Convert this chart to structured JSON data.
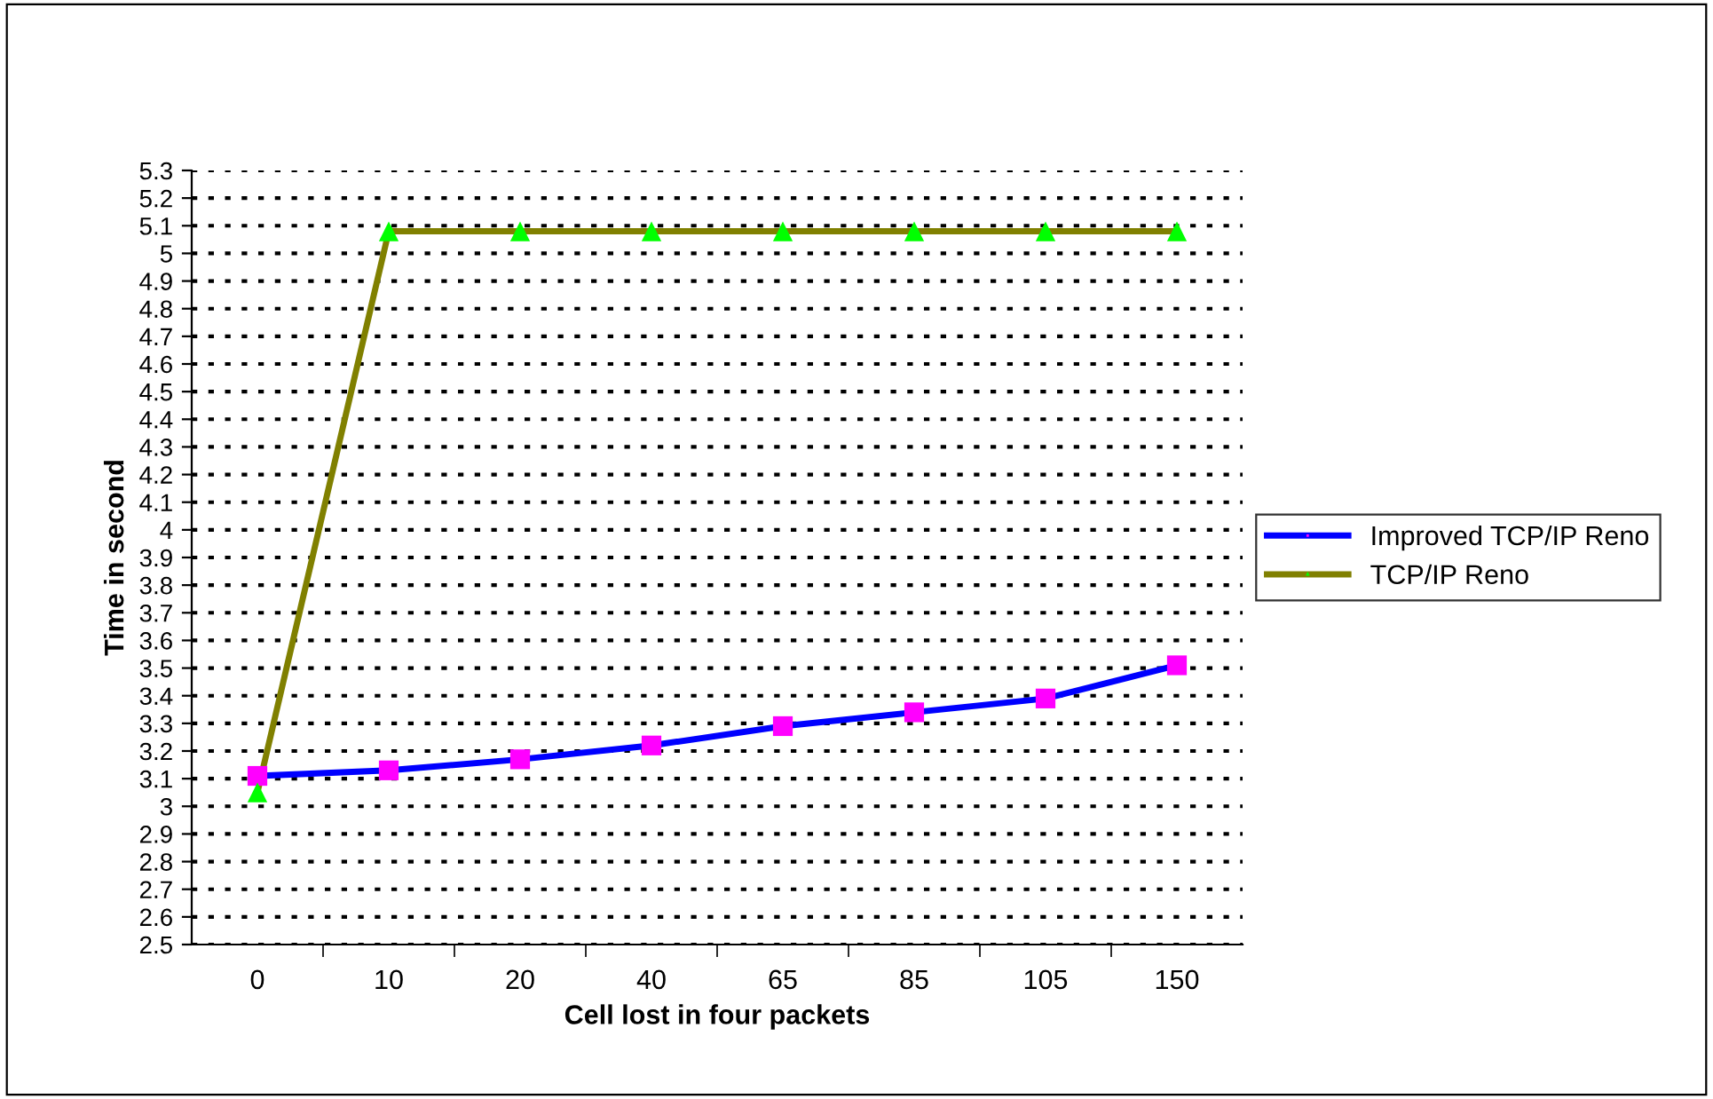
{
  "chart_data": {
    "type": "line",
    "xlabel": "Cell lost in four packets",
    "ylabel": "Time in second",
    "categories": [
      "0",
      "10",
      "20",
      "40",
      "65",
      "85",
      "105",
      "150"
    ],
    "series": [
      {
        "name": "Improved TCP/IP Reno",
        "color": "#0000ff",
        "marker": "square",
        "colors": [
          "#ff00ff",
          "#ff00ff",
          "#ff00ff",
          "#ff00ff",
          "#ff00ff",
          "#ff00ff",
          "#ff00ff",
          "#ff00ff"
        ],
        "values": [
          3.11,
          3.13,
          3.17,
          3.22,
          3.29,
          3.34,
          3.39,
          3.51
        ]
      },
      {
        "name": "TCP/IP Reno",
        "color": "#808000",
        "marker": "triangle",
        "colors": [
          "#00ff00",
          "#00ff00",
          "#00ff00",
          "#00ff00",
          "#00ff00",
          "#00ff00",
          "#00ff00",
          "#00ff00"
        ],
        "values": [
          3.05,
          5.08,
          5.08,
          5.08,
          5.08,
          5.08,
          5.08,
          5.08
        ]
      }
    ],
    "ylim": [
      2.5,
      5.3
    ],
    "yticks": [
      2.5,
      2.6,
      2.7,
      2.8,
      2.9,
      3,
      3.1,
      3.2,
      3.3,
      3.4,
      3.5,
      3.6,
      3.7,
      3.8,
      3.9,
      4,
      4.1,
      4.2,
      4.3,
      4.4,
      4.5,
      4.6,
      4.7,
      4.8,
      4.9,
      5,
      5.1,
      5.2,
      5.3
    ],
    "grid": "y",
    "legend": "right",
    "line_style": "solid"
  }
}
